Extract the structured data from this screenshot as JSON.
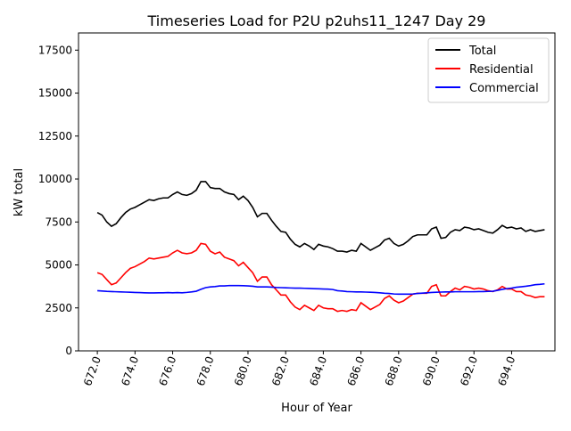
{
  "chart_data": {
    "type": "line",
    "title": "Timeseries Load for P2U p2uhs11_1247  Day 29",
    "xlabel": "Hour of Year",
    "ylabel": "kW total",
    "xlim": [
      671.0,
      696.3
    ],
    "ylim": [
      0,
      18500
    ],
    "grid": false,
    "legend_position": "top-right",
    "x_ticks": [
      672.0,
      674.0,
      676.0,
      678.0,
      680.0,
      682.0,
      684.0,
      686.0,
      688.0,
      690.0,
      692.0,
      694.0
    ],
    "x_tick_labels": [
      "672.0",
      "674.0",
      "676.0",
      "678.0",
      "680.0",
      "682.0",
      "684.0",
      "686.0",
      "688.0",
      "690.0",
      "692.0",
      "694.0"
    ],
    "y_ticks": [
      0,
      2500,
      5000,
      7500,
      10000,
      12500,
      15000,
      17500
    ],
    "y_tick_labels": [
      "0",
      "2500",
      "5000",
      "7500",
      "10000",
      "12500",
      "15000",
      "17500"
    ],
    "x": [
      672.0,
      672.25,
      672.5,
      672.75,
      673.0,
      673.25,
      673.5,
      673.75,
      674.0,
      674.25,
      674.5,
      674.75,
      675.0,
      675.25,
      675.5,
      675.75,
      676.0,
      676.25,
      676.5,
      676.75,
      677.0,
      677.25,
      677.5,
      677.75,
      678.0,
      678.25,
      678.5,
      678.75,
      679.0,
      679.25,
      679.5,
      679.75,
      680.0,
      680.25,
      680.5,
      680.75,
      681.0,
      681.25,
      681.5,
      681.75,
      682.0,
      682.25,
      682.5,
      682.75,
      683.0,
      683.25,
      683.5,
      683.75,
      684.0,
      684.25,
      684.5,
      684.75,
      685.0,
      685.25,
      685.5,
      685.75,
      686.0,
      686.25,
      686.5,
      686.75,
      687.0,
      687.25,
      687.5,
      687.75,
      688.0,
      688.25,
      688.5,
      688.75,
      689.0,
      689.25,
      689.5,
      689.75,
      690.0,
      690.25,
      690.5,
      690.75,
      691.0,
      691.25,
      691.5,
      691.75,
      692.0,
      692.25,
      692.5,
      692.75,
      693.0,
      693.25,
      693.5,
      693.75,
      694.0,
      694.25,
      694.5,
      694.75,
      695.0,
      695.25,
      695.5,
      695.75
    ],
    "series": [
      {
        "name": "Total",
        "color": "#000000",
        "values": [
          8050,
          7900,
          7500,
          7250,
          7400,
          7750,
          8050,
          8250,
          8350,
          8500,
          8650,
          8800,
          8750,
          8850,
          8900,
          8900,
          9100,
          9250,
          9100,
          9050,
          9150,
          9350,
          9850,
          9850,
          9500,
          9450,
          9450,
          9250,
          9150,
          9100,
          8800,
          9000,
          8750,
          8350,
          7800,
          8000,
          8000,
          7600,
          7250,
          6950,
          6900,
          6500,
          6200,
          6050,
          6250,
          6100,
          5900,
          6200,
          6100,
          6050,
          5950,
          5800,
          5800,
          5750,
          5850,
          5800,
          6250,
          6050,
          5850,
          6000,
          6150,
          6450,
          6550,
          6250,
          6100,
          6200,
          6400,
          6650,
          6750,
          6750,
          6750,
          7100,
          7200,
          6550,
          6600,
          6900,
          7050,
          7000,
          7200,
          7150,
          7050,
          7100,
          7000,
          6900,
          6850,
          7050,
          7300,
          7150,
          7200,
          7100,
          7150,
          6950,
          7050,
          6950,
          7000,
          7050
        ]
      },
      {
        "name": "Residential",
        "color": "#ff0000",
        "values": [
          4550,
          4450,
          4150,
          3850,
          3950,
          4250,
          4550,
          4800,
          4900,
          5050,
          5200,
          5400,
          5350,
          5400,
          5450,
          5500,
          5700,
          5850,
          5700,
          5650,
          5700,
          5850,
          6250,
          6200,
          5800,
          5650,
          5750,
          5450,
          5350,
          5250,
          4950,
          5150,
          4850,
          4550,
          4050,
          4300,
          4300,
          3850,
          3550,
          3250,
          3250,
          2850,
          2550,
          2400,
          2650,
          2500,
          2350,
          2650,
          2500,
          2450,
          2450,
          2300,
          2350,
          2300,
          2400,
          2350,
          2800,
          2600,
          2400,
          2550,
          2700,
          3050,
          3200,
          2950,
          2800,
          2900,
          3100,
          3300,
          3350,
          3350,
          3350,
          3750,
          3850,
          3200,
          3200,
          3450,
          3650,
          3550,
          3750,
          3700,
          3600,
          3650,
          3600,
          3500,
          3450,
          3550,
          3750,
          3600,
          3600,
          3450,
          3450,
          3250,
          3200,
          3100,
          3150,
          3150
        ]
      },
      {
        "name": "Commercial",
        "color": "#0000ff",
        "values": [
          3500,
          3480,
          3460,
          3450,
          3440,
          3430,
          3420,
          3410,
          3400,
          3390,
          3380,
          3370,
          3370,
          3380,
          3380,
          3390,
          3380,
          3390,
          3380,
          3400,
          3430,
          3470,
          3580,
          3680,
          3720,
          3740,
          3780,
          3780,
          3800,
          3800,
          3800,
          3790,
          3780,
          3760,
          3720,
          3720,
          3720,
          3710,
          3690,
          3680,
          3670,
          3660,
          3650,
          3650,
          3640,
          3630,
          3620,
          3610,
          3600,
          3590,
          3570,
          3500,
          3480,
          3450,
          3440,
          3430,
          3430,
          3420,
          3410,
          3400,
          3380,
          3350,
          3340,
          3310,
          3300,
          3300,
          3300,
          3310,
          3340,
          3360,
          3380,
          3400,
          3410,
          3420,
          3430,
          3430,
          3440,
          3440,
          3440,
          3440,
          3440,
          3450,
          3450,
          3460,
          3470,
          3520,
          3580,
          3620,
          3650,
          3700,
          3730,
          3760,
          3800,
          3850,
          3870,
          3900
        ]
      }
    ]
  }
}
